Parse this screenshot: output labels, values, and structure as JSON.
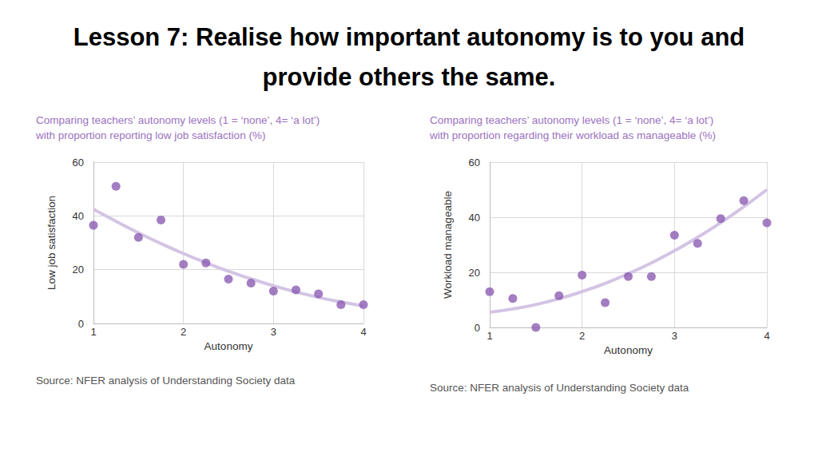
{
  "title": "Lesson 7: Realise how important autonomy is to you and\nprovide others the same.",
  "chart_data": [
    {
      "type": "scatter",
      "title": "Comparing teachers’ autonomy levels (1 = ‘none’, 4= ‘a lot’)\nwith proportion reporting low job satisfaction (%)",
      "source": "Source: NFER analysis of Understanding Society data",
      "x_label": "Autonomy",
      "y_label": "Low job satisfaction",
      "x": [
        1,
        1.25,
        1.5,
        1.75,
        2,
        2.25,
        2.5,
        2.75,
        3,
        3.25,
        3.5,
        3.75,
        4
      ],
      "values": [
        36.5,
        51,
        32,
        38.5,
        22,
        22.5,
        16.5,
        15,
        12,
        12.5,
        11,
        7,
        7
      ],
      "trend": [
        42.5,
        38,
        33.7,
        29.7,
        26,
        22.6,
        19.4,
        16.6,
        14,
        11.7,
        9.7,
        8,
        6.5
      ],
      "color": "#8c5db3",
      "trend_color": "#d3c4e4",
      "xlim": [
        1,
        4
      ],
      "xticks": [
        1,
        2,
        3,
        4
      ],
      "ylim": [
        0,
        60
      ],
      "yticks": [
        0,
        20,
        40,
        60
      ],
      "grid": true
    },
    {
      "type": "scatter",
      "title": "Comparing teachers’ autonomy levels (1 = ‘none’, 4= ‘a lot’)\nwith proportion regarding their workload as manageable (%)",
      "source": "Source: NFER analysis of Understanding Society data",
      "x_label": "Autonomy",
      "y_label": "Workload manageable",
      "x": [
        1,
        1.25,
        1.5,
        1.75,
        2,
        2.25,
        2.5,
        2.75,
        3,
        3.25,
        3.5,
        3.75,
        4
      ],
      "values": [
        13,
        10.5,
        0,
        11.5,
        19,
        9,
        18.5,
        18.5,
        33.5,
        30.5,
        39.5,
        46,
        38
      ],
      "trend": [
        5.5,
        6.7,
        8.3,
        10.4,
        13,
        16,
        19.5,
        23.4,
        27.8,
        32.7,
        38,
        43.8,
        50
      ],
      "color": "#8c5db3",
      "trend_color": "#d3c4e4",
      "xlim": [
        1,
        4
      ],
      "xticks": [
        1,
        2,
        3,
        4
      ],
      "ylim": [
        0,
        60
      ],
      "yticks": [
        0,
        20,
        40,
        60
      ],
      "grid": true
    }
  ]
}
